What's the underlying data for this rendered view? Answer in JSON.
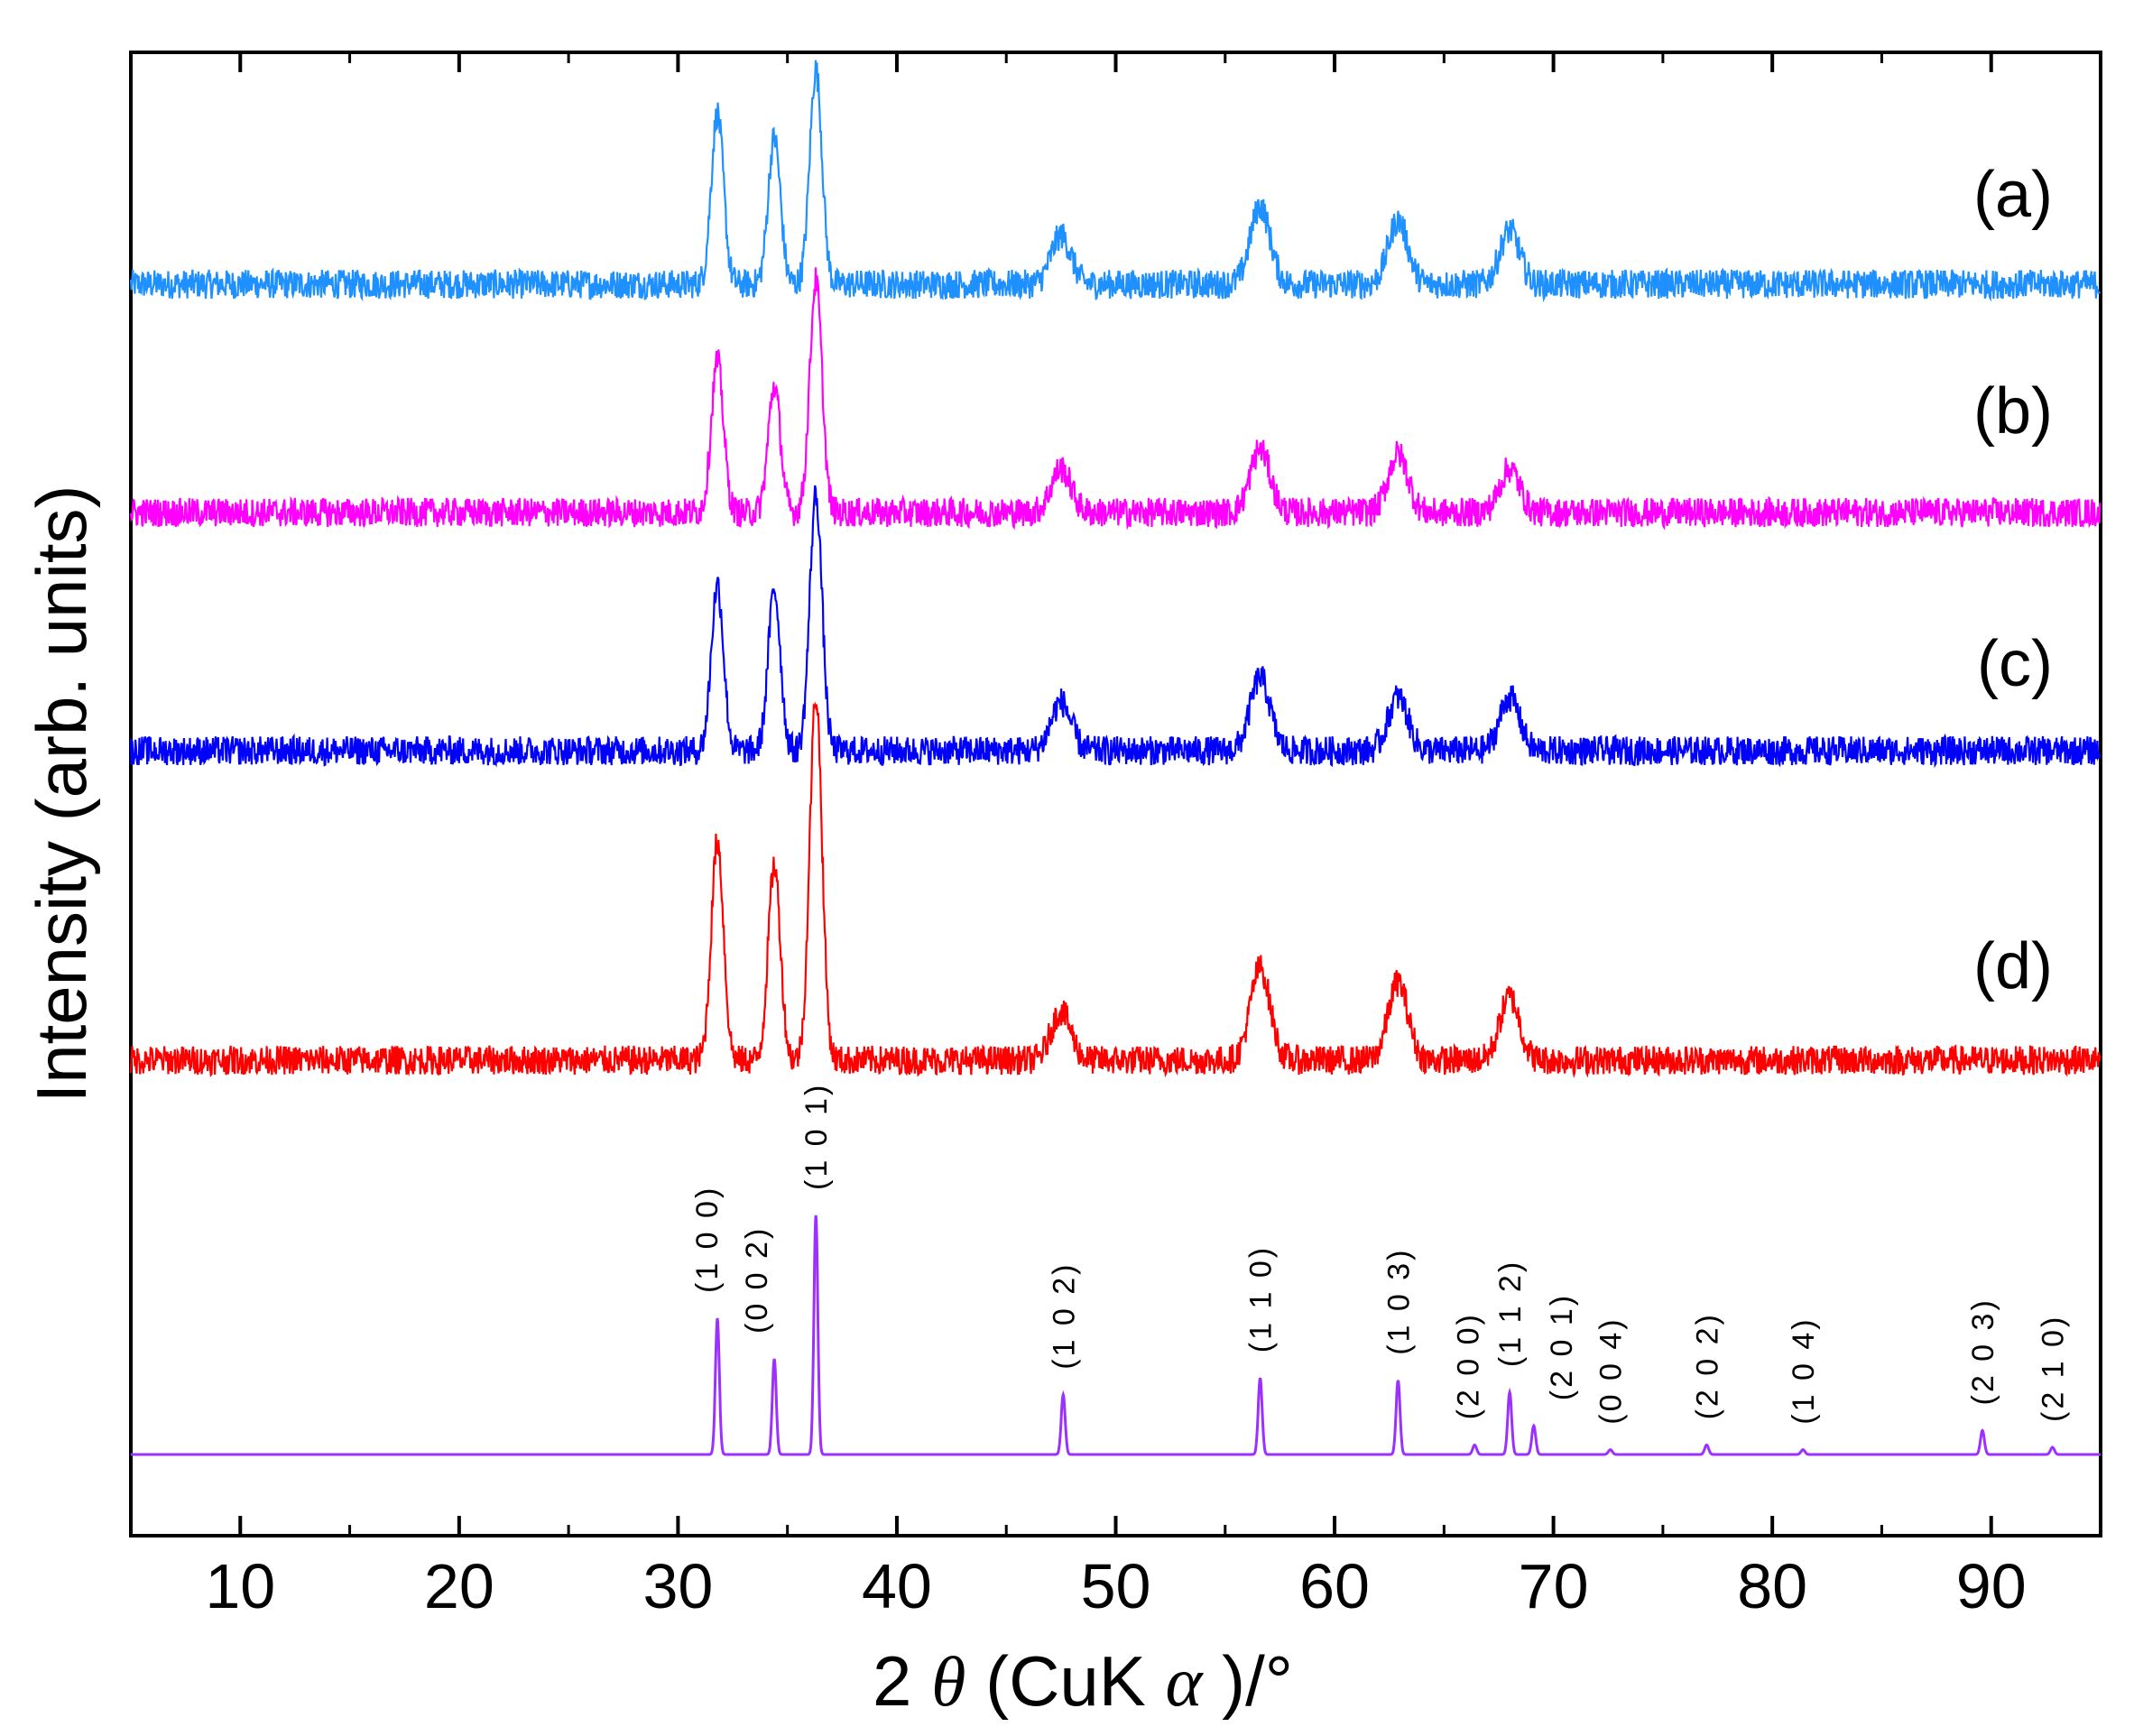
{
  "chart_data": {
    "type": "line",
    "xlabel_parts": [
      "2 ",
      "θ",
      " (CuK ",
      "α",
      " )/°"
    ],
    "ylabel": "Intensity (arb. units)",
    "xlim": [
      5,
      95
    ],
    "xticks": [
      10,
      20,
      30,
      40,
      50,
      60,
      70,
      80,
      90
    ],
    "y_tick_labels": "none",
    "grid": false,
    "colors": {
      "a": "#1e90ff",
      "b": "#ff00ff",
      "c": "#0000ff",
      "d": "#ff0000",
      "reference": "#9b30ff"
    },
    "series": [
      {
        "name": "(a)",
        "peaks": [
          {
            "two_theta": 31.8,
            "intensity": 0.7
          },
          {
            "two_theta": 34.4,
            "intensity": 0.6
          },
          {
            "two_theta": 36.3,
            "intensity": 0.88
          },
          {
            "two_theta": 47.5,
            "intensity": 0.2
          },
          {
            "two_theta": 56.6,
            "intensity": 0.32
          },
          {
            "two_theta": 62.9,
            "intensity": 0.26
          },
          {
            "two_theta": 68.0,
            "intensity": 0.22
          }
        ]
      },
      {
        "name": "(b)",
        "peaks": [
          {
            "two_theta": 31.8,
            "intensity": 0.62
          },
          {
            "two_theta": 34.4,
            "intensity": 0.52
          },
          {
            "two_theta": 36.3,
            "intensity": 0.95
          },
          {
            "two_theta": 47.5,
            "intensity": 0.18
          },
          {
            "two_theta": 56.6,
            "intensity": 0.26
          },
          {
            "two_theta": 62.9,
            "intensity": 0.24
          },
          {
            "two_theta": 68.0,
            "intensity": 0.18
          }
        ]
      },
      {
        "name": "(c)",
        "peaks": [
          {
            "two_theta": 31.8,
            "intensity": 0.68
          },
          {
            "two_theta": 34.4,
            "intensity": 0.66
          },
          {
            "two_theta": 36.3,
            "intensity": 1.05
          },
          {
            "two_theta": 47.5,
            "intensity": 0.2
          },
          {
            "two_theta": 56.6,
            "intensity": 0.3
          },
          {
            "two_theta": 62.9,
            "intensity": 0.22
          },
          {
            "two_theta": 68.0,
            "intensity": 0.22
          }
        ]
      },
      {
        "name": "(d)",
        "peaks": [
          {
            "two_theta": 31.8,
            "intensity": 0.9
          },
          {
            "two_theta": 34.4,
            "intensity": 0.8
          },
          {
            "two_theta": 36.3,
            "intensity": 1.5
          },
          {
            "two_theta": 47.5,
            "intensity": 0.2
          },
          {
            "two_theta": 56.6,
            "intensity": 0.38
          },
          {
            "two_theta": 62.9,
            "intensity": 0.32
          },
          {
            "two_theta": 68.0,
            "intensity": 0.26
          }
        ]
      }
    ],
    "reference": {
      "peaks": [
        {
          "hkl": "(1 0 0)",
          "two_theta": 31.8,
          "intensity": 57
        },
        {
          "hkl": "(0 0 2)",
          "two_theta": 34.4,
          "intensity": 40
        },
        {
          "hkl": "(1 0 1)",
          "two_theta": 36.3,
          "intensity": 100
        },
        {
          "hkl": "(1 0 2)",
          "two_theta": 47.6,
          "intensity": 25
        },
        {
          "hkl": "(1 1 0)",
          "two_theta": 56.6,
          "intensity": 32
        },
        {
          "hkl": "(1 0 3)",
          "two_theta": 62.9,
          "intensity": 31
        },
        {
          "hkl": "(2 0 0)",
          "two_theta": 66.4,
          "intensity": 4
        },
        {
          "hkl": "(1 1 2)",
          "two_theta": 68.0,
          "intensity": 26
        },
        {
          "hkl": "(2 0 1)",
          "two_theta": 69.1,
          "intensity": 12
        },
        {
          "hkl": "(0 0 4)",
          "two_theta": 72.6,
          "intensity": 2
        },
        {
          "hkl": "(2 0 2)",
          "two_theta": 77.0,
          "intensity": 4
        },
        {
          "hkl": "(1 0 4)",
          "two_theta": 81.4,
          "intensity": 2
        },
        {
          "hkl": "(2 0 3)",
          "two_theta": 89.6,
          "intensity": 10
        },
        {
          "hkl": "(2 1 0)",
          "two_theta": 92.8,
          "intensity": 3
        }
      ]
    }
  }
}
